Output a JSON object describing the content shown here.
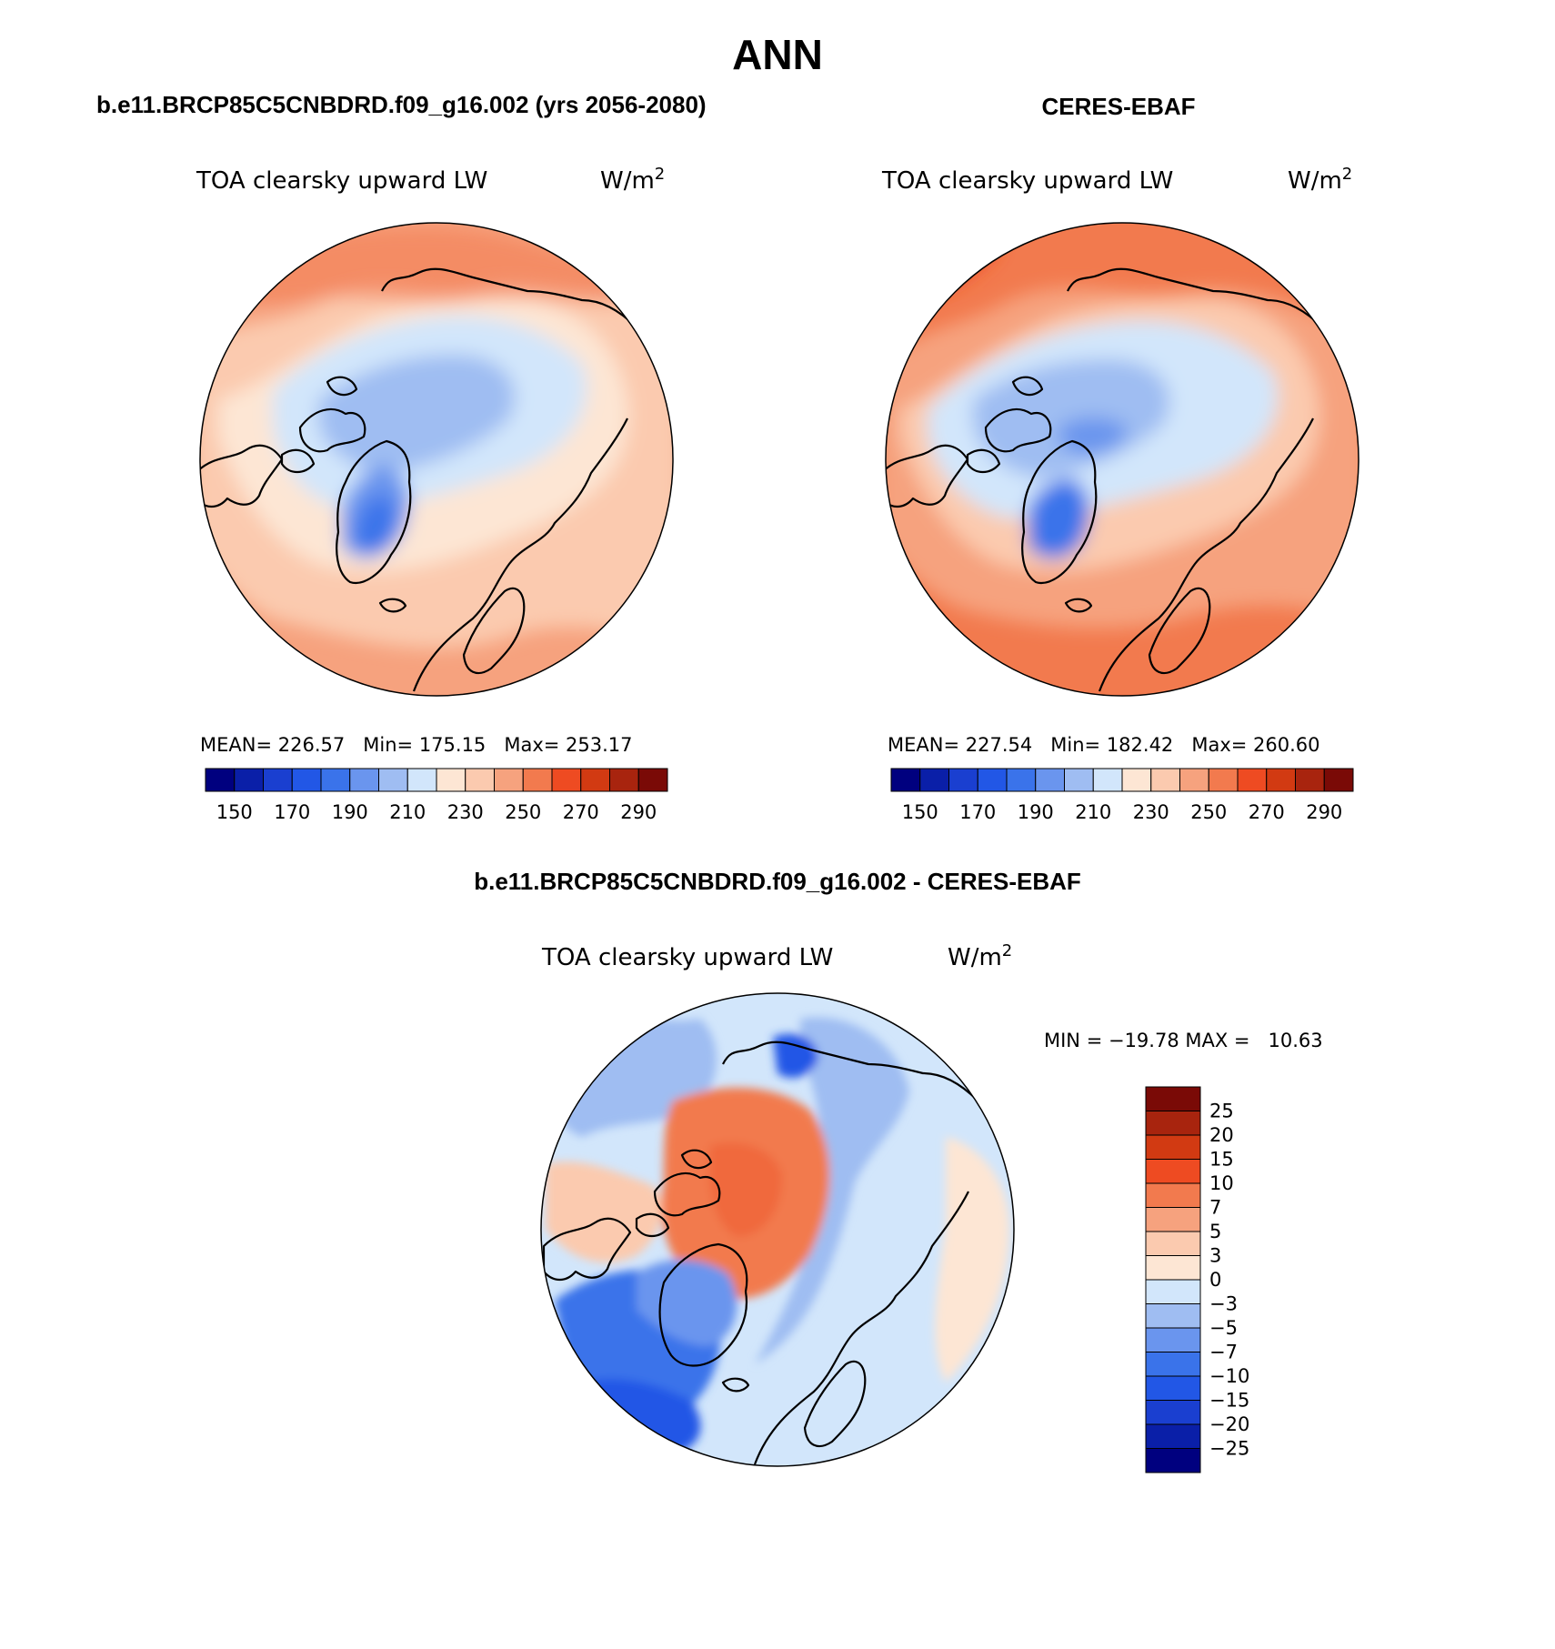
{
  "figure": {
    "season": "ANN",
    "left_panel": {
      "case_title": "b.e11.BRCP85C5CNBDRD.f09_g16.002 (yrs 2056-2080)",
      "variable": "TOA clearsky upward LW",
      "units": "W/m",
      "units_sup": "2",
      "mean_label": "MEAN=",
      "mean_value": "226.57",
      "min_label": "Min=",
      "min_value": "175.15",
      "max_label": "Max=",
      "max_value": "253.17"
    },
    "right_panel": {
      "case_title": "CERES-EBAF",
      "variable": "TOA clearsky upward LW",
      "units": "W/m",
      "units_sup": "2",
      "mean_label": "MEAN=",
      "mean_value": "227.54",
      "min_label": "Min=",
      "min_value": "182.42",
      "max_label": "Max=",
      "max_value": "260.60"
    },
    "diff_panel": {
      "case_title": "b.e11.BRCP85C5CNBDRD.f09_g16.002 - CERES-EBAF",
      "variable": "TOA clearsky upward LW",
      "units": "W/m",
      "units_sup": "2",
      "minmax_text": "MIN = −19.78 MAX =   10.63"
    }
  },
  "chart_data": [
    {
      "type": "heatmap",
      "projection": "north-polar-stereographic",
      "title": "b.e11.BRCP85C5CNBDRD.f09_g16.002 (yrs 2056-2080)",
      "subtitle": "TOA clearsky upward LW",
      "units": "W/m2",
      "stats": {
        "mean": 226.57,
        "min": 175.15,
        "max": 253.17
      },
      "colorbar": {
        "orientation": "horizontal",
        "levels": [
          140,
          150,
          160,
          170,
          180,
          190,
          200,
          210,
          220,
          230,
          240,
          250,
          260,
          270,
          280,
          290
        ],
        "tick_labels": [
          "150",
          "170",
          "190",
          "210",
          "230",
          "250",
          "270",
          "290"
        ],
        "colors": [
          "#00007f",
          "#0a1fa8",
          "#1a3fd0",
          "#2257e6",
          "#3a73ea",
          "#6a95ee",
          "#9fbdf2",
          "#d2e6fb",
          "#fde6d4",
          "#fbcaaf",
          "#f6a27e",
          "#f27a4e",
          "#ee4b22",
          "#d23a12",
          "#a8240e",
          "#7a0a06"
        ]
      }
    },
    {
      "type": "heatmap",
      "projection": "north-polar-stereographic",
      "title": "CERES-EBAF",
      "subtitle": "TOA clearsky upward LW",
      "units": "W/m2",
      "stats": {
        "mean": 227.54,
        "min": 182.42,
        "max": 260.6
      },
      "colorbar": {
        "orientation": "horizontal",
        "levels": [
          140,
          150,
          160,
          170,
          180,
          190,
          200,
          210,
          220,
          230,
          240,
          250,
          260,
          270,
          280,
          290
        ],
        "tick_labels": [
          "150",
          "170",
          "190",
          "210",
          "230",
          "250",
          "270",
          "290"
        ],
        "colors": [
          "#00007f",
          "#0a1fa8",
          "#1a3fd0",
          "#2257e6",
          "#3a73ea",
          "#6a95ee",
          "#9fbdf2",
          "#d2e6fb",
          "#fde6d4",
          "#fbcaaf",
          "#f6a27e",
          "#f27a4e",
          "#ee4b22",
          "#d23a12",
          "#a8240e",
          "#7a0a06"
        ]
      }
    },
    {
      "type": "heatmap",
      "projection": "north-polar-stereographic",
      "title": "b.e11.BRCP85C5CNBDRD.f09_g16.002 - CERES-EBAF",
      "subtitle": "TOA clearsky upward LW",
      "units": "W/m2",
      "stats": {
        "min": -19.78,
        "max": 10.63
      },
      "colorbar": {
        "orientation": "vertical",
        "tick_labels": [
          "25",
          "20",
          "15",
          "10",
          "7",
          "5",
          "3",
          "0",
          "−3",
          "−5",
          "−7",
          "−10",
          "−15",
          "−20",
          "−25"
        ],
        "colors": [
          "#7a0a06",
          "#a8240e",
          "#d23a12",
          "#ee4b22",
          "#f27a4e",
          "#f6a27e",
          "#fbcaaf",
          "#fde6d4",
          "#d2e6fb",
          "#9fbdf2",
          "#6a95ee",
          "#3a73ea",
          "#2257e6",
          "#1a3fd0",
          "#0a1fa8",
          "#00007f"
        ]
      }
    }
  ]
}
